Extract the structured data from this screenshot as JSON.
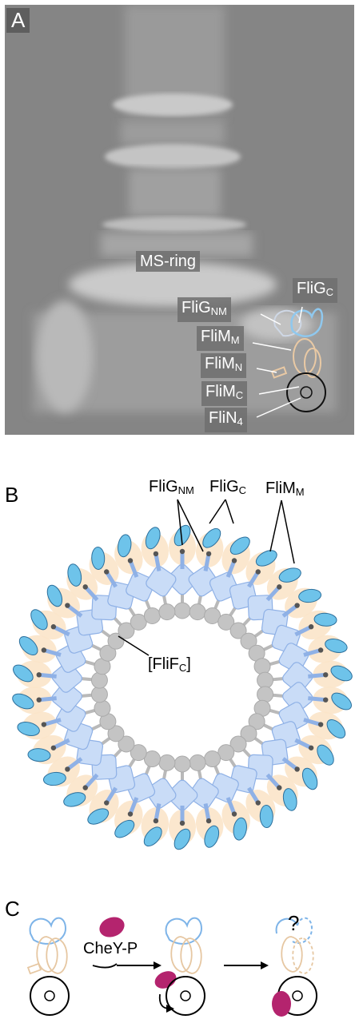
{
  "panels": {
    "a": {
      "letter": "A",
      "labels": {
        "ms_ring": "MS-ring",
        "flig_c": "FliG",
        "flig_c_sub": "C",
        "flig_nm": "FliG",
        "flig_nm_sub": "NM",
        "flim_m": "FliM",
        "flim_m_sub": "M",
        "flim_n": "FliM",
        "flim_n_sub": "N",
        "flim_c": "FliM",
        "flim_c_sub": "C",
        "flin_4": "FliN",
        "flin_4_sub": "4"
      }
    },
    "b": {
      "letter": "B",
      "labels": {
        "flig_nm": "FliG",
        "flig_nm_sub": "NM",
        "flig_c": "FliG",
        "flig_c_sub": "C",
        "flim_m": "FliM",
        "flim_m_sub": "M",
        "flif_c_open": "[FliF",
        "flif_c_sub": "C",
        "flif_c_close": "]"
      }
    },
    "c": {
      "letter": "C",
      "labels": {
        "chey_p": "CheY-P",
        "question": "?"
      }
    }
  },
  "colors": {
    "flig_fill": "#c9dcf7",
    "flig_stroke": "#8fb1e6",
    "flig_c_fill": "#6ec3ea",
    "flig_c_stroke": "#2c6f9c",
    "flim_fill": "#fbe4c9",
    "flif_fill": "#c4c4c4",
    "chey_fill": "#b4246e"
  }
}
